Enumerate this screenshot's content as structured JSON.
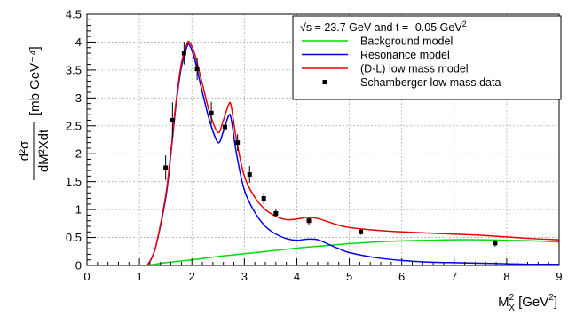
{
  "chart_data": {
    "type": "line",
    "legend": {
      "header": {
        "pre": "√s = 23.7 GeV and t = -0.05 GeV",
        "sup": "2"
      },
      "placement": "top-right"
    },
    "xaxis": {
      "label": {
        "main": "M",
        "sup": "2",
        "sub": "X",
        "unit_pre": " [GeV",
        "unit_sup": "2",
        "unit_post": "]"
      },
      "range": [
        0,
        9
      ],
      "ticks": [
        "0",
        "1",
        "2",
        "3",
        "4",
        "5",
        "6",
        "7",
        "8",
        "9"
      ]
    },
    "yaxis": {
      "label": {
        "num": "d²σ",
        "den": "dM²Xdt",
        "unit": "[mb GeV⁻⁴]"
      },
      "range": [
        0,
        4.5
      ],
      "ticks": [
        "0",
        "0.5",
        "1",
        "1.5",
        "2",
        "2.5",
        "3",
        "3.5",
        "4",
        "4.5"
      ]
    },
    "grid": true,
    "series": [
      {
        "name": "Background model",
        "color": "#00dd00",
        "style": "line",
        "x": [
          1.15,
          1.5,
          2.0,
          2.5,
          3.0,
          3.5,
          4.0,
          4.5,
          5.0,
          5.5,
          6.0,
          6.5,
          7.0,
          7.5,
          8.0,
          8.5,
          9.0
        ],
        "y": [
          0.0,
          0.05,
          0.1,
          0.16,
          0.21,
          0.26,
          0.31,
          0.35,
          0.39,
          0.42,
          0.44,
          0.45,
          0.46,
          0.46,
          0.45,
          0.44,
          0.42
        ]
      },
      {
        "name": "Resonance model",
        "color": "#0000ee",
        "style": "line",
        "x": [
          1.15,
          1.3,
          1.5,
          1.6,
          1.7,
          1.8,
          1.9,
          1.95,
          2.05,
          2.2,
          2.35,
          2.5,
          2.6,
          2.7,
          2.75,
          2.85,
          3.0,
          3.2,
          3.4,
          3.6,
          3.8,
          4.0,
          4.2,
          4.4,
          4.6,
          4.8,
          5.0,
          5.5,
          6.0,
          6.5,
          7.0,
          7.5,
          8.0,
          8.5,
          9.0
        ],
        "y": [
          0.0,
          0.3,
          1.2,
          2.0,
          2.9,
          3.55,
          3.9,
          3.95,
          3.7,
          3.1,
          2.55,
          2.2,
          2.4,
          2.68,
          2.62,
          2.0,
          1.35,
          0.95,
          0.7,
          0.56,
          0.48,
          0.45,
          0.47,
          0.46,
          0.38,
          0.3,
          0.23,
          0.14,
          0.09,
          0.06,
          0.05,
          0.04,
          0.03,
          0.02,
          0.02
        ]
      },
      {
        "name": "(D-L) low mass model",
        "color": "#ee0000",
        "style": "line",
        "x": [
          1.15,
          1.3,
          1.5,
          1.6,
          1.7,
          1.8,
          1.9,
          1.95,
          2.05,
          2.2,
          2.35,
          2.5,
          2.6,
          2.7,
          2.75,
          2.85,
          3.0,
          3.2,
          3.4,
          3.6,
          3.8,
          4.0,
          4.2,
          4.4,
          4.6,
          4.8,
          5.0,
          5.5,
          6.0,
          6.5,
          7.0,
          7.5,
          8.0,
          8.5,
          9.0
        ],
        "y": [
          0.0,
          0.3,
          1.25,
          2.05,
          2.95,
          3.62,
          3.95,
          4.0,
          3.8,
          3.25,
          2.7,
          2.38,
          2.6,
          2.88,
          2.85,
          2.25,
          1.6,
          1.22,
          1.0,
          0.88,
          0.82,
          0.83,
          0.86,
          0.84,
          0.78,
          0.72,
          0.68,
          0.63,
          0.6,
          0.58,
          0.56,
          0.54,
          0.51,
          0.48,
          0.46
        ]
      },
      {
        "name": "Schamberger low mass data",
        "color": "#000000",
        "style": "points",
        "x": [
          1.5,
          1.63,
          1.85,
          2.1,
          2.37,
          2.63,
          2.87,
          3.1,
          3.37,
          3.6,
          4.23,
          5.22,
          7.78
        ],
        "y": [
          1.75,
          2.6,
          3.8,
          3.52,
          2.73,
          2.48,
          2.2,
          1.63,
          1.2,
          0.93,
          0.8,
          0.6,
          0.4
        ],
        "yerr": [
          0.22,
          0.32,
          0.2,
          0.2,
          0.2,
          0.16,
          0.15,
          0.15,
          0.1,
          0.07,
          0.07,
          0.05,
          0.06
        ]
      }
    ]
  }
}
